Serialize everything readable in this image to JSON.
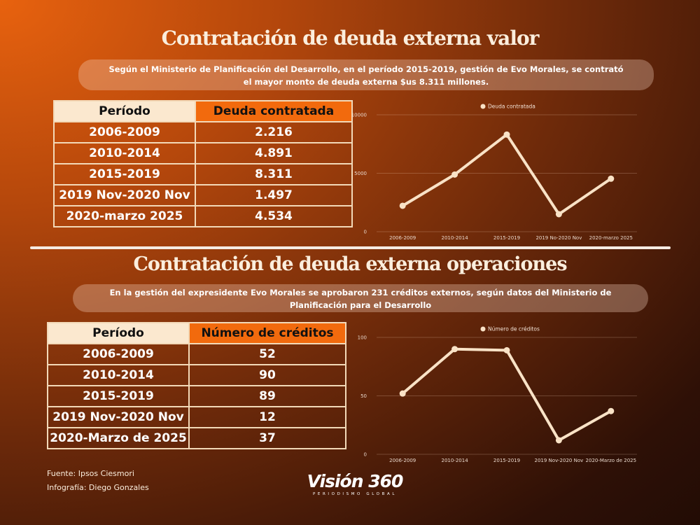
{
  "section1": {
    "title": "Contratación de deuda externa valor",
    "subtitle_line1": "Según el Ministerio de Planificación del Desarrollo, en el período 2015-2019, gestión de Evo Morales, se contrató",
    "subtitle_line2": "el mayor monto de deuda externa $us 8.311 millones.",
    "table": {
      "headers": [
        "Período",
        "Deuda contratada"
      ],
      "rows": [
        [
          "2006-2009",
          "2.216"
        ],
        [
          "2010-2014",
          "4.891"
        ],
        [
          "2015-2019",
          "8.311"
        ],
        [
          "2019 Nov-2020 Nov",
          "1.497"
        ],
        [
          "2020-marzo 2025",
          "4.534"
        ]
      ]
    }
  },
  "section2": {
    "title": "Contratación de deuda externa operaciones",
    "subtitle_line1": "En la gestión del expresidente Evo Morales se aprobaron 231 créditos externos, según datos del Ministerio de",
    "subtitle_line2": "Planificación para el Desarrollo",
    "table": {
      "headers": [
        "Período",
        "Número de créditos"
      ],
      "rows": [
        [
          "2006-2009",
          "52"
        ],
        [
          "2010-2014",
          "90"
        ],
        [
          "2015-2019",
          "89"
        ],
        [
          "2019 Nov-2020 Nov",
          "12"
        ],
        [
          "2020-Marzo de 2025",
          "37"
        ]
      ]
    }
  },
  "chart_data": [
    {
      "type": "line",
      "categories": [
        "2006-2009",
        "2010-2014",
        "2015-2019",
        "2019 No-2020 Nov",
        "2020-marzo 2025"
      ],
      "series": [
        {
          "name": "Deuda contratada",
          "values": [
            2216,
            4891,
            8311,
            1497,
            4534
          ]
        }
      ],
      "yticks": [
        "0",
        "5000",
        "10000"
      ],
      "ylim": [
        0,
        10000
      ],
      "legend_position": "top-center",
      "grid": true,
      "line_color": "#f9e2c6"
    },
    {
      "type": "line",
      "categories": [
        "2006-2009",
        "2010-2014",
        "2015-2019",
        "2019 Nov-2020 Nov",
        "2020-Marzo de 2025"
      ],
      "series": [
        {
          "name": "Número de créditos",
          "values": [
            52,
            90,
            89,
            12,
            37
          ]
        }
      ],
      "yticks": [
        "0",
        "50",
        "100"
      ],
      "ylim": [
        0,
        100
      ],
      "legend_position": "top-center",
      "grid": true,
      "line_color": "#f9e2c6"
    }
  ],
  "footer": {
    "source": "Fuente: Ipsos Ciesmori",
    "infographic": "Infografía: Diego Gonzales",
    "logo_main": "Visión 360",
    "logo_sub": "PERIODISMO GLOBAL"
  }
}
